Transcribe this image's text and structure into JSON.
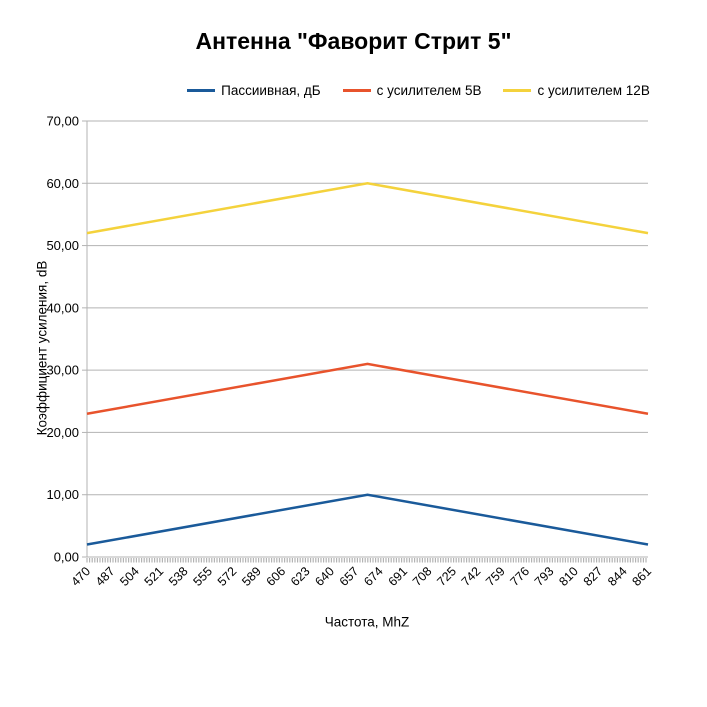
{
  "chart_data": {
    "type": "line",
    "title": "Антенна \"Фаворит Стрит 5\"",
    "xlabel": "Частота, MhZ",
    "ylabel": "Коэффициент усиления, dB",
    "x_categories": [
      "470",
      "487",
      "504",
      "521",
      "538",
      "555",
      "572",
      "589",
      "606",
      "623",
      "640",
      "657",
      "674",
      "691",
      "708",
      "725",
      "742",
      "759",
      "776",
      "793",
      "810",
      "827",
      "844",
      "861"
    ],
    "x_range": [
      470,
      861
    ],
    "x_step": 17,
    "ylim": [
      0,
      70
    ],
    "y_ticks": [
      0,
      10,
      20,
      30,
      40,
      50,
      60,
      70
    ],
    "y_tick_labels": [
      "0,00",
      "10,00",
      "20,00",
      "30,00",
      "40,00",
      "50,00",
      "60,00",
      "70,00"
    ],
    "grid": "horizontal",
    "legend_position": "top",
    "series": [
      {
        "name": "Пассиивная, дБ",
        "color": "#1A5A9A",
        "points": [
          [
            470,
            2
          ],
          [
            665.5,
            10
          ],
          [
            861,
            2
          ]
        ]
      },
      {
        "name": "с усилителем 5В",
        "color": "#E8532C",
        "points": [
          [
            470,
            23
          ],
          [
            665.5,
            31
          ],
          [
            861,
            23
          ]
        ]
      },
      {
        "name": "с усилителем 12В",
        "color": "#F4D23C",
        "points": [
          [
            470,
            52
          ],
          [
            665.5,
            60
          ],
          [
            861,
            52
          ]
        ]
      }
    ],
    "colors": {
      "grid_line": "#b3b3b3",
      "axis_line": "#b3b3b3",
      "tick_label": "#1a1a1a"
    }
  }
}
